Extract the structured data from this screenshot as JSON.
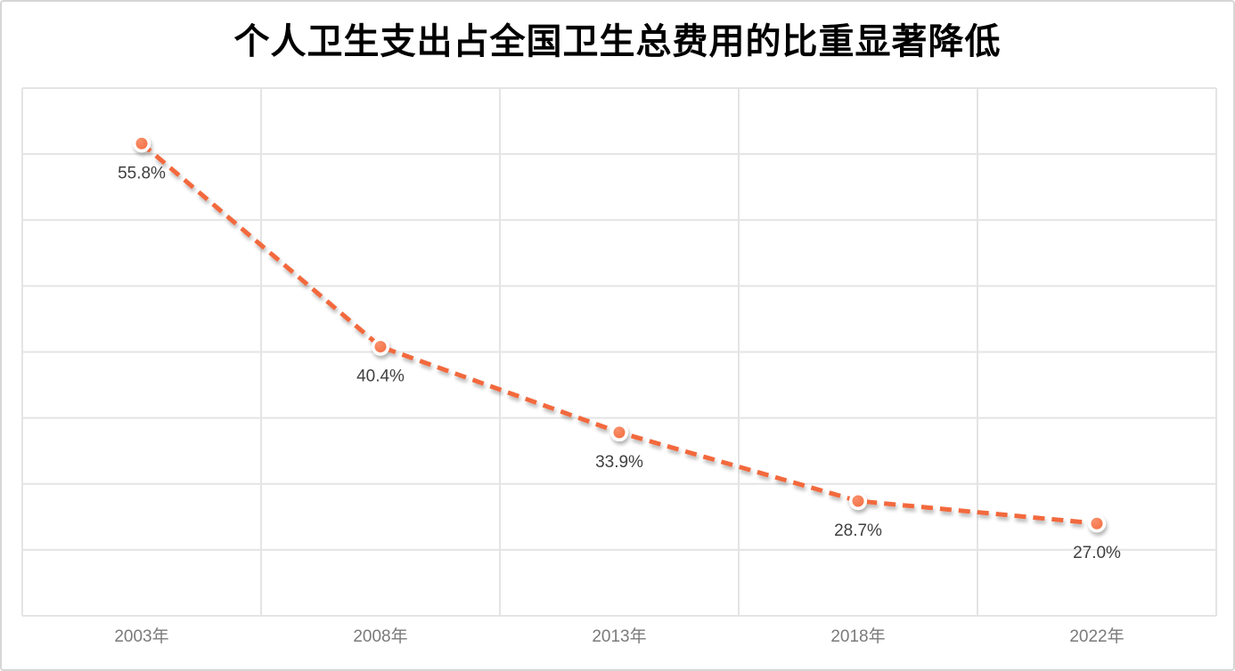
{
  "chart_data": {
    "type": "line",
    "title": "个人卫生支出占全国卫生总费用的比重显著降低",
    "categories": [
      "2003年",
      "2008年",
      "2013年",
      "2018年",
      "2022年"
    ],
    "values": [
      55.8,
      40.4,
      33.9,
      28.7,
      27.0
    ],
    "data_labels": [
      "55.8%",
      "40.4%",
      "33.9%",
      "28.7%",
      "27.0%"
    ],
    "ylabel": "",
    "xlabel": "",
    "ylim": [
      20,
      60
    ],
    "grid_step": 5,
    "grid": true,
    "legend_position": "none",
    "line_style": "dashed",
    "line_color": "#f2693e",
    "marker_fill_color": "#f46c41",
    "marker_highlight_color": "#f9906a",
    "marker_ring_color": "#ffffff",
    "gridline_color": "#e4e4e4",
    "data_label_color": "#404040",
    "axis_label_color": "#7a7a7a",
    "title_color": "#000000",
    "frame_border_color": "#d6d6d6"
  }
}
